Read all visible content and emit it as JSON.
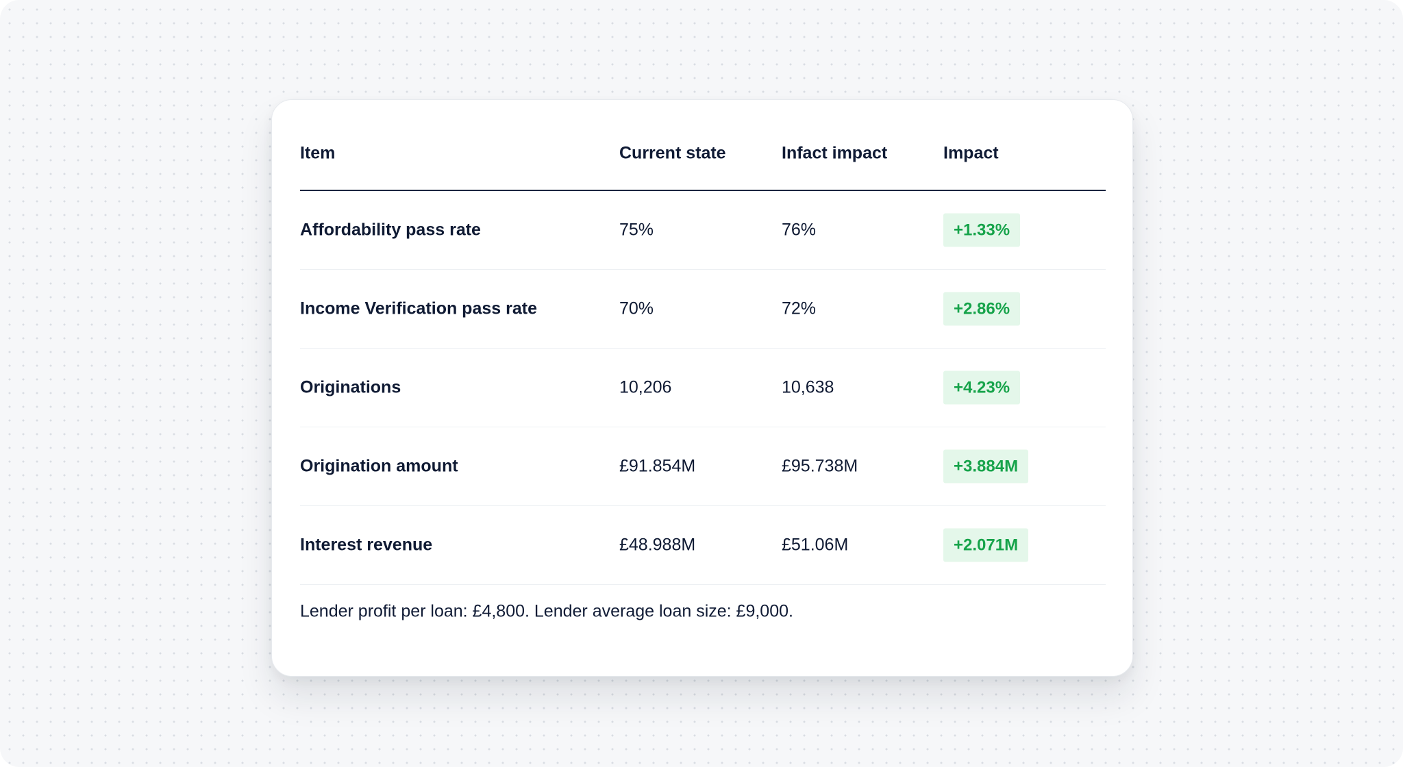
{
  "table": {
    "headers": [
      "Item",
      "Current state",
      "Infact impact",
      "Impact"
    ],
    "rows": [
      {
        "item": "Affordability pass rate",
        "current": "75%",
        "infact": "76%",
        "impact": "+1.33%"
      },
      {
        "item": "Income Verification pass rate",
        "current": "70%",
        "infact": "72%",
        "impact": "+2.86%"
      },
      {
        "item": "Originations",
        "current": "10,206",
        "infact": "10,638",
        "impact": "+4.23%"
      },
      {
        "item": "Origination amount",
        "current": "£91.854M",
        "infact": "£95.738M",
        "impact": "+3.884M"
      },
      {
        "item": "Interest revenue",
        "current": "£48.988M",
        "infact": "£51.06M",
        "impact": "+2.071M"
      }
    ]
  },
  "footnote": "Lender profit per loan: £4,800. Lender average loan size: £9,000.",
  "colors": {
    "impact_positive_text": "#16a34a",
    "impact_positive_bg": "#e4f7ea",
    "header_rule": "#1b2540",
    "text": "#0f1a33"
  }
}
